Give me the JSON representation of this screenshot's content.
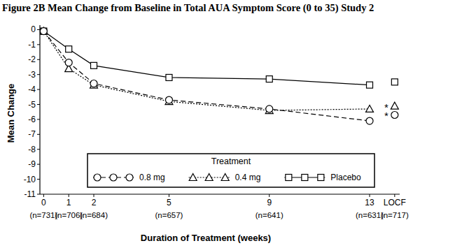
{
  "chart_data": {
    "type": "line",
    "title": "Figure 2B Mean Change from Baseline in Total AUA Symptom Score (0 to 35) Study 2",
    "x_label": "Duration of Treatment (weeks)",
    "y_label": "Mean Change",
    "x": [
      0,
      1,
      2,
      5,
      9,
      13
    ],
    "series": [
      {
        "name": "0.8 mg",
        "color": "#000000",
        "marker": "circle",
        "line_style": "dashed",
        "values": [
          -0.1,
          -2.2,
          -3.6,
          -4.7,
          -5.3,
          -6.1
        ],
        "locf": {
          "x": 14,
          "value": -5.7,
          "note": "*"
        }
      },
      {
        "name": "0.4 mg",
        "color": "#000000",
        "marker": "triangle",
        "line_style": "dotted",
        "values": [
          -0.1,
          -2.6,
          -3.7,
          -4.8,
          -5.4,
          -5.3
        ],
        "locf": {
          "x": 14,
          "value": -5.1,
          "note": "*"
        }
      },
      {
        "name": "Placebo",
        "color": "#000000",
        "marker": "square",
        "line_style": "solid",
        "values": [
          -0.1,
          -1.3,
          -2.4,
          -3.2,
          -3.3,
          -3.7
        ],
        "locf": {
          "x": 14,
          "value": -3.5
        }
      }
    ],
    "xlim": [
      -0.15,
      14.2
    ],
    "ylim": [
      -11,
      0.3
    ],
    "xticks": [
      0,
      1,
      2,
      5,
      9,
      13,
      {
        "value": 14,
        "label": "LOCF"
      }
    ],
    "yticks": [
      0,
      -1,
      -2,
      -3,
      -4,
      -5,
      -6,
      -7,
      -8,
      -9,
      -10,
      -11
    ],
    "legend": "bottom",
    "legend_title": "Treatment",
    "sample_sizes": {
      "x": [
        0,
        1,
        2,
        5,
        9,
        13,
        14
      ],
      "values": [
        731,
        706,
        684,
        657,
        641,
        631,
        717
      ],
      "value_labels": [
        "(n=731)",
        "(n=706)",
        "(n=684)",
        "(n=657)",
        "(n=641)",
        "(n=631)",
        "(n=717)"
      ]
    }
  }
}
